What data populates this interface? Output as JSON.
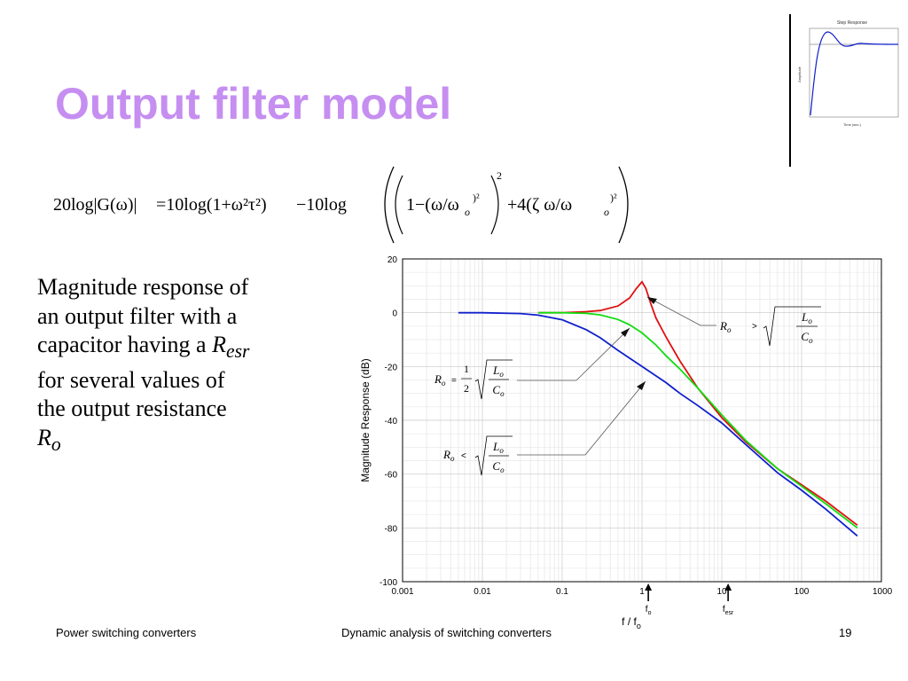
{
  "slide": {
    "title": "Output filter model",
    "paragraph": [
      "Magnitude response of",
      "an output filter with a",
      "capacitor having a",
      "for several values of",
      "the output resistance"
    ],
    "r_esr": "R",
    "r_esr_sub": "esr",
    "r_o": "R",
    "r_o_sub": "o"
  },
  "equation": {
    "lhs": "20log|G(ω)|",
    "rhs_1": "=10log(1+ω²τ²)",
    "rhs_2": "−10log",
    "inner_1": "1−(ω/ω",
    "inner_2": "+4(ζ ω/ω"
  },
  "footer": {
    "left": "Power switching converters",
    "center": "Dynamic analysis of switching converters",
    "page": "19"
  },
  "thumbnail": {
    "title": "Step Response",
    "ylabel": "Amplitude",
    "xlabel": "Time (sec.)"
  },
  "chart_data": {
    "type": "line",
    "ylabel": "Magnitude Response (dB)",
    "xlabel": "f / f",
    "xlabel_sub": "o",
    "xscale": "log",
    "xlim": [
      0.001,
      1000
    ],
    "ylim": [
      -100,
      20
    ],
    "x_ticks": [
      "0.001",
      "0.01",
      "0.1",
      "1",
      "10",
      "100",
      "1000"
    ],
    "y_ticks": [
      "20",
      "0",
      "-20",
      "-40",
      "-60",
      "-80",
      "-100"
    ],
    "grid": true,
    "markers": [
      {
        "label": "f",
        "sub": "o",
        "x": 1.2
      },
      {
        "label": "f",
        "sub": "esr",
        "x": 12
      }
    ],
    "annotations": [
      {
        "relation": ">",
        "series": "red"
      },
      {
        "relation": "=",
        "coef_num": "1",
        "coef_den": "2",
        "series": "green"
      },
      {
        "relation": "<",
        "series": "blue"
      }
    ],
    "series": [
      {
        "color": "#e01010",
        "points": [
          [
            0.05,
            0
          ],
          [
            0.1,
            0
          ],
          [
            0.2,
            0.4
          ],
          [
            0.3,
            0.8
          ],
          [
            0.5,
            2.5
          ],
          [
            0.7,
            5.5
          ],
          [
            0.85,
            9
          ],
          [
            1.0,
            11.5
          ],
          [
            1.12,
            9
          ],
          [
            1.3,
            3
          ],
          [
            1.5,
            -2
          ],
          [
            2,
            -9
          ],
          [
            3,
            -18
          ],
          [
            5,
            -28
          ],
          [
            10,
            -39
          ],
          [
            20,
            -48
          ],
          [
            50,
            -58
          ],
          [
            100,
            -64
          ],
          [
            200,
            -70
          ],
          [
            500,
            -79
          ]
        ]
      },
      {
        "color": "#10dd10",
        "points": [
          [
            0.05,
            0
          ],
          [
            0.1,
            0
          ],
          [
            0.2,
            -0.2
          ],
          [
            0.3,
            -0.8
          ],
          [
            0.5,
            -2.5
          ],
          [
            0.7,
            -4.5
          ],
          [
            1,
            -7.5
          ],
          [
            1.5,
            -12
          ],
          [
            2,
            -16
          ],
          [
            3,
            -21
          ],
          [
            5,
            -28
          ],
          [
            10,
            -38
          ],
          [
            20,
            -47.5
          ],
          [
            50,
            -58
          ],
          [
            100,
            -64.5
          ],
          [
            200,
            -71
          ],
          [
            500,
            -80
          ]
        ]
      },
      {
        "color": "#1020cc",
        "points": [
          [
            0.005,
            0
          ],
          [
            0.01,
            0
          ],
          [
            0.03,
            -0.3
          ],
          [
            0.05,
            -0.9
          ],
          [
            0.1,
            -2.6
          ],
          [
            0.2,
            -6.3
          ],
          [
            0.3,
            -9.3
          ],
          [
            0.5,
            -14
          ],
          [
            1,
            -20
          ],
          [
            2,
            -26
          ],
          [
            3,
            -30
          ],
          [
            5,
            -34.5
          ],
          [
            10,
            -41
          ],
          [
            20,
            -49
          ],
          [
            50,
            -59.5
          ],
          [
            100,
            -66
          ],
          [
            200,
            -73
          ],
          [
            500,
            -83
          ]
        ]
      }
    ]
  }
}
